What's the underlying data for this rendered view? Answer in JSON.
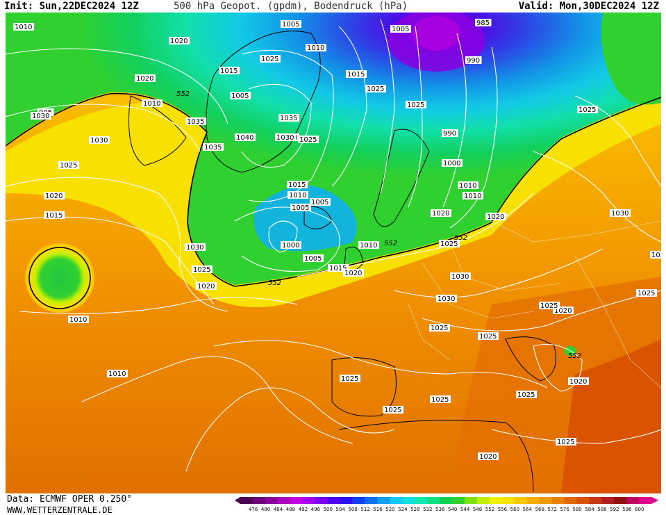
{
  "header": {
    "init": "Init: Sun,22DEC2024 12Z",
    "title": "500 hPa Geopot. (gpdm), Bodendruck (hPa)",
    "valid": "Valid: Mon,30DEC2024 12Z"
  },
  "footer": {
    "source": "Data: ECMWF OPER 0.250°",
    "site": "WWW.WETTERZENTRALE.DE"
  },
  "legend": {
    "ticks": [
      "476",
      "480",
      "484",
      "488",
      "492",
      "496",
      "500",
      "504",
      "508",
      "512",
      "516",
      "520",
      "524",
      "528",
      "532",
      "536",
      "540",
      "544",
      "548",
      "552",
      "556",
      "560",
      "564",
      "568",
      "572",
      "576",
      "580",
      "584",
      "588",
      "592",
      "596",
      "600"
    ],
    "colors": [
      "#4a0050",
      "#6a007a",
      "#8a009a",
      "#aa00c0",
      "#c000e0",
      "#a000f0",
      "#7a00f0",
      "#5000f0",
      "#2a10f0",
      "#1040f0",
      "#1070f0",
      "#10a0f0",
      "#10c8f0",
      "#10e0e0",
      "#10e8b0",
      "#10e080",
      "#10d050",
      "#30d030",
      "#80e010",
      "#c0f000",
      "#f0f000",
      "#f8e000",
      "#f8c800",
      "#f8b000",
      "#f09800",
      "#e88000",
      "#e06800",
      "#d85000",
      "#c83818",
      "#b02020",
      "#901010",
      "#c00060",
      "#e00090"
    ]
  },
  "map": {
    "pressure_labels": [
      "1010",
      "1005",
      "985",
      "1005",
      "1020",
      "1010",
      "1025",
      "990",
      "1015",
      "1015",
      "1020",
      "552",
      "1025",
      "1010",
      "995",
      "1025",
      "1005",
      "1030",
      "1030",
      "1010",
      "1035",
      "1035",
      "1040",
      "1030",
      "1025",
      "990",
      "1035",
      "1030",
      "1025",
      "1015",
      "1000",
      "1020",
      "1010",
      "1005",
      "1010",
      "1020",
      "1005",
      "1015",
      "1010",
      "1020",
      "1030",
      "552",
      "1000",
      "1010",
      "1025",
      "552",
      "1030",
      "1005",
      "1015",
      "1025",
      "1020",
      "1020",
      "552",
      "1030",
      "1025",
      "1030",
      "1020",
      "1025",
      "1025",
      "1025",
      "1010",
      "552",
      "1010",
      "1025",
      "1025",
      "1020",
      "1025",
      "1025",
      "1025",
      "1025",
      "1025",
      "1020"
    ],
    "contour_552": "552"
  }
}
